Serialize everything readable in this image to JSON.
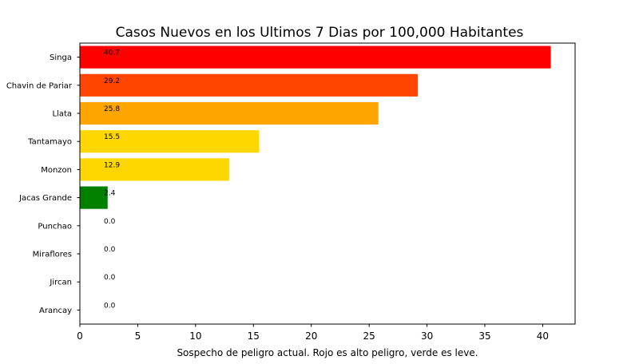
{
  "chart_data": {
    "type": "bar",
    "orientation": "horizontal",
    "title": "Casos Nuevos en los Ultimos 7 Dias por 100,000 Habitantes",
    "xlabel": "Sospecho de peligro actual. Rojo es alto peligro, verde es leve.",
    "ylabel": "",
    "categories": [
      "Singa",
      "Chavin de Pariar",
      "Llata",
      "Tantamayo",
      "Monzon",
      "Jacas Grande",
      "Punchao",
      "Miraflores",
      "Jircan",
      "Arancay"
    ],
    "values": [
      40.7,
      29.2,
      25.8,
      15.5,
      12.9,
      2.4,
      0.0,
      0.0,
      0.0,
      0.0
    ],
    "data_labels": [
      "40.7",
      "29.2",
      "25.8",
      "15.5",
      "12.9",
      "2.4",
      "0.0",
      "0.0",
      "0.0",
      "0.0"
    ],
    "colors": [
      "#ff0000",
      "#ff4500",
      "#ffa500",
      "#ffd700",
      "#ffd700",
      "#008000",
      "#008000",
      "#008000",
      "#008000",
      "#008000"
    ],
    "xlim": [
      0,
      42.8
    ],
    "xticks": [
      0,
      5,
      10,
      15,
      20,
      25,
      30,
      35,
      40
    ],
    "xtick_labels": [
      "0",
      "5",
      "10",
      "15",
      "20",
      "25",
      "30",
      "35",
      "40"
    ],
    "grid": false,
    "legend": "none"
  }
}
